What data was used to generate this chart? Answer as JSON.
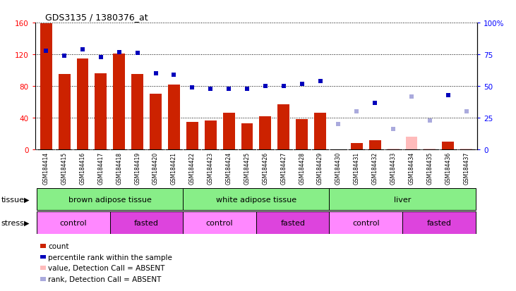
{
  "title": "GDS3135 / 1380376_at",
  "samples": [
    "GSM184414",
    "GSM184415",
    "GSM184416",
    "GSM184417",
    "GSM184418",
    "GSM184419",
    "GSM184420",
    "GSM184421",
    "GSM184422",
    "GSM184423",
    "GSM184424",
    "GSM184425",
    "GSM184426",
    "GSM184427",
    "GSM184428",
    "GSM184429",
    "GSM184430",
    "GSM184431",
    "GSM184432",
    "GSM184433",
    "GSM184434",
    "GSM184435",
    "GSM184436",
    "GSM184437"
  ],
  "count_values": [
    159,
    95,
    115,
    96,
    121,
    95,
    70,
    82,
    35,
    37,
    46,
    33,
    42,
    57,
    38,
    46,
    0,
    8,
    12,
    1,
    16,
    1,
    10,
    1
  ],
  "rank_values": [
    78,
    74,
    79,
    73,
    77,
    76,
    60,
    59,
    49,
    48,
    48,
    48,
    50,
    50,
    52,
    54,
    20,
    30,
    37,
    16,
    42,
    23,
    43,
    30
  ],
  "absent_count": [
    false,
    false,
    false,
    false,
    false,
    false,
    false,
    false,
    false,
    false,
    false,
    false,
    false,
    false,
    false,
    false,
    true,
    false,
    false,
    true,
    true,
    true,
    false,
    true
  ],
  "absent_rank": [
    false,
    false,
    false,
    false,
    false,
    false,
    false,
    false,
    false,
    false,
    false,
    false,
    false,
    false,
    false,
    false,
    true,
    true,
    false,
    true,
    true,
    true,
    false,
    true
  ],
  "count_max": 160,
  "rank_max": 100,
  "left_ticks": [
    0,
    40,
    80,
    120,
    160
  ],
  "right_ticks": [
    0,
    25,
    50,
    75,
    100
  ],
  "right_tick_labels": [
    "0",
    "25",
    "50",
    "75",
    "100%"
  ],
  "bar_present_color": "#CC2200",
  "bar_absent_color": "#FFBBBB",
  "rank_present_color": "#0000BB",
  "rank_absent_color": "#AAAADD",
  "tissue_groups": [
    {
      "label": "brown adipose tissue",
      "start": 0,
      "end": 8,
      "color": "#88EE88"
    },
    {
      "label": "white adipose tissue",
      "start": 8,
      "end": 16,
      "color": "#88EE88"
    },
    {
      "label": "liver",
      "start": 16,
      "end": 24,
      "color": "#88EE88"
    }
  ],
  "stress_groups": [
    {
      "label": "control",
      "start": 0,
      "end": 4,
      "color": "#FF88FF"
    },
    {
      "label": "fasted",
      "start": 4,
      "end": 8,
      "color": "#DD44DD"
    },
    {
      "label": "control",
      "start": 8,
      "end": 12,
      "color": "#FF88FF"
    },
    {
      "label": "fasted",
      "start": 12,
      "end": 16,
      "color": "#DD44DD"
    },
    {
      "label": "control",
      "start": 16,
      "end": 20,
      "color": "#FF88FF"
    },
    {
      "label": "fasted",
      "start": 20,
      "end": 24,
      "color": "#DD44DD"
    }
  ],
  "sample_bg_color": "#C8C8C8",
  "legend_items": [
    {
      "color": "#CC2200",
      "label": "count"
    },
    {
      "color": "#0000BB",
      "label": "percentile rank within the sample"
    },
    {
      "color": "#FFBBBB",
      "label": "value, Detection Call = ABSENT"
    },
    {
      "color": "#AAAADD",
      "label": "rank, Detection Call = ABSENT"
    }
  ]
}
